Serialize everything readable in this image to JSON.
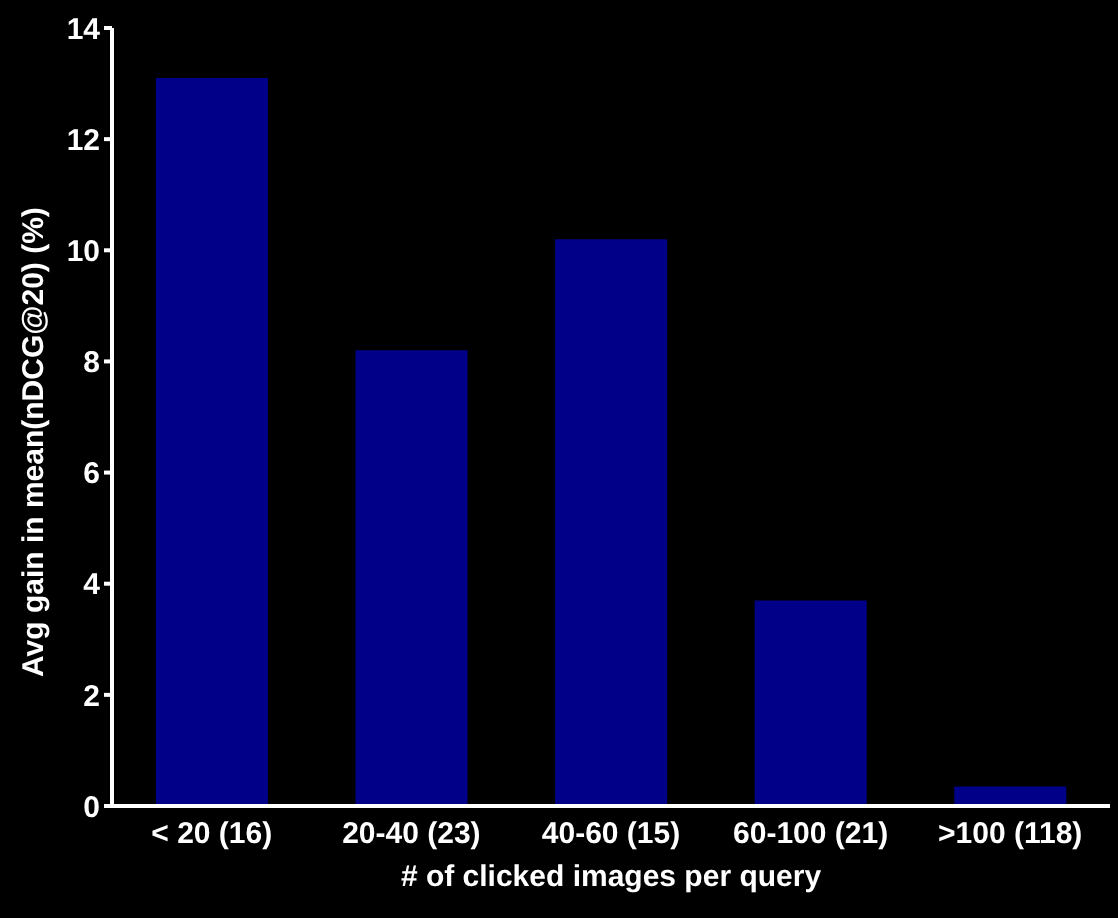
{
  "chart_data": {
    "type": "bar",
    "xlabel": "# of clicked images per query",
    "ylabel": "Avg gain in mean(nDCG@20) (%)",
    "categories": [
      "< 20 (16)",
      "20-40 (23)",
      "40-60 (15)",
      "60-100 (21)",
      ">100 (118)"
    ],
    "values": [
      13.1,
      8.2,
      10.2,
      3.7,
      0.35
    ],
    "color": "#000088",
    "ylim": [
      0,
      14
    ],
    "yticks": [
      0,
      2,
      4,
      6,
      8,
      10,
      12,
      14
    ],
    "grid": false,
    "legend": false
  }
}
